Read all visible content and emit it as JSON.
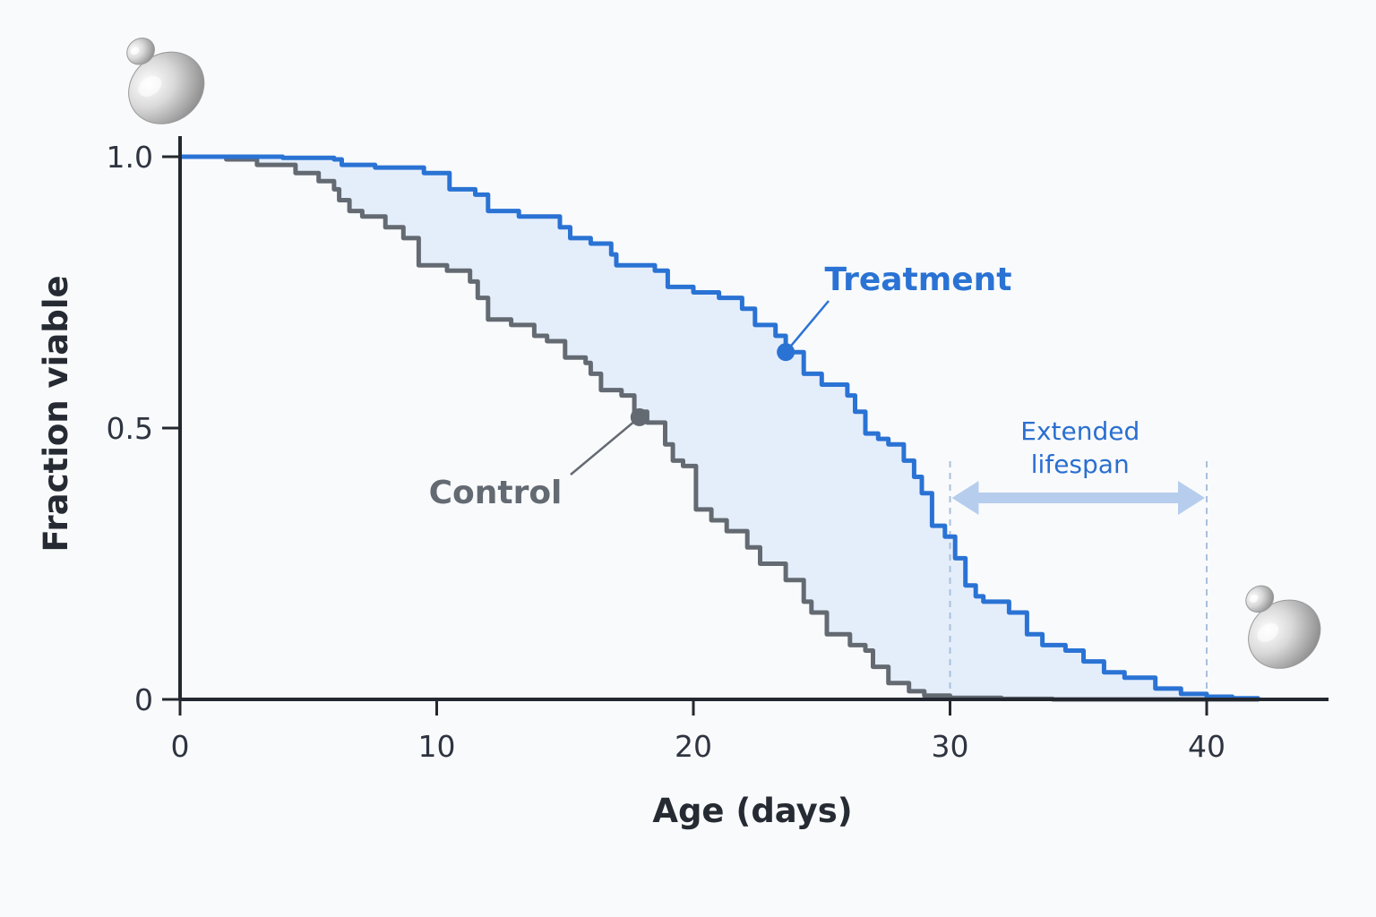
{
  "chart_data": {
    "type": "line",
    "title": "",
    "xlabel": "Age (days)",
    "ylabel": "Fraction viable",
    "xlim": [
      0,
      45
    ],
    "ylim": [
      0,
      1.0
    ],
    "x_ticks": [
      {
        "value": 0,
        "label": "0"
      },
      {
        "value": 10,
        "label": "10"
      },
      {
        "value": 20,
        "label": "20"
      },
      {
        "value": 30,
        "label": "30"
      },
      {
        "value": 40,
        "label": "40"
      }
    ],
    "y_ticks": [
      {
        "value": 0,
        "label": "0"
      },
      {
        "value": 0.5,
        "label": "0.5"
      },
      {
        "value": 1.0,
        "label": "1.0"
      }
    ],
    "grid": false,
    "step": true,
    "series": [
      {
        "name": "Control",
        "color": "#646a72",
        "x": [
          0,
          1.8,
          3,
          4.5,
          5.4,
          6,
          6.2,
          6.6,
          7.1,
          8,
          8.7,
          9.3,
          10.4,
          11.3,
          11.6,
          12,
          12.9,
          13.8,
          14.3,
          15,
          15.8,
          16,
          16.4,
          17.2,
          17.7,
          18.2,
          18.9,
          19.2,
          19.6,
          20.1,
          20.7,
          21.3,
          22.1,
          22.6,
          23.6,
          24.3,
          24.6,
          25.2,
          26.1,
          26.7,
          27,
          27.6,
          28.4,
          29,
          30,
          32,
          34,
          36,
          38,
          40,
          42
        ],
        "values": [
          1.0,
          0.995,
          0.985,
          0.97,
          0.955,
          0.94,
          0.92,
          0.9,
          0.89,
          0.87,
          0.85,
          0.8,
          0.79,
          0.77,
          0.74,
          0.7,
          0.69,
          0.67,
          0.66,
          0.63,
          0.62,
          0.6,
          0.57,
          0.56,
          0.53,
          0.51,
          0.47,
          0.44,
          0.43,
          0.35,
          0.33,
          0.31,
          0.28,
          0.25,
          0.22,
          0.18,
          0.16,
          0.12,
          0.1,
          0.09,
          0.06,
          0.03,
          0.015,
          0.007,
          0.003,
          0.001,
          0,
          0,
          0,
          0,
          0
        ]
      },
      {
        "name": "Treatment",
        "color": "#2a73d4",
        "x": [
          0,
          2,
          4,
          6,
          6.3,
          7.6,
          9.5,
          10.5,
          11.5,
          12,
          13.2,
          14.8,
          15.2,
          16,
          16.8,
          17,
          18.5,
          19,
          20,
          21,
          21.9,
          22.4,
          23.2,
          23.6,
          24.3,
          25,
          26,
          26.3,
          26.7,
          27.2,
          27.6,
          28.2,
          28.6,
          28.9,
          29.3,
          29.8,
          30.2,
          30.6,
          31,
          31.3,
          32.3,
          33,
          33.6,
          34.5,
          35.2,
          36,
          36.8,
          38,
          39,
          40,
          41,
          42
        ],
        "values": [
          1.0,
          1.0,
          0.998,
          0.995,
          0.985,
          0.98,
          0.97,
          0.94,
          0.93,
          0.9,
          0.89,
          0.87,
          0.85,
          0.84,
          0.82,
          0.8,
          0.79,
          0.76,
          0.75,
          0.74,
          0.72,
          0.69,
          0.67,
          0.64,
          0.6,
          0.58,
          0.56,
          0.53,
          0.49,
          0.48,
          0.47,
          0.44,
          0.41,
          0.38,
          0.32,
          0.3,
          0.26,
          0.21,
          0.19,
          0.18,
          0.16,
          0.12,
          0.1,
          0.09,
          0.07,
          0.05,
          0.04,
          0.02,
          0.01,
          0.005,
          0.002,
          0
        ]
      }
    ],
    "markers": [
      {
        "series": "Treatment",
        "x": 23.6,
        "y": 0.64,
        "color": "#2a73d4"
      },
      {
        "series": "Control",
        "x": 17.9,
        "y": 0.52,
        "color": "#646a72"
      }
    ],
    "annotations": {
      "treatment_label": "Treatment",
      "control_label": "Control",
      "extended_label_line1": "Extended",
      "extended_label_line2": "lifespan",
      "extended_from_x": 30,
      "extended_to_x": 40
    }
  },
  "icons": [
    "yeast-cell-icon",
    "yeast-cell-icon"
  ],
  "colors": {
    "fill": "#e4eefb",
    "axis": "#232830",
    "arrow": "#b7cdee",
    "dashed": "#a9c0dc",
    "annotation_text": "#2a6fd0"
  }
}
